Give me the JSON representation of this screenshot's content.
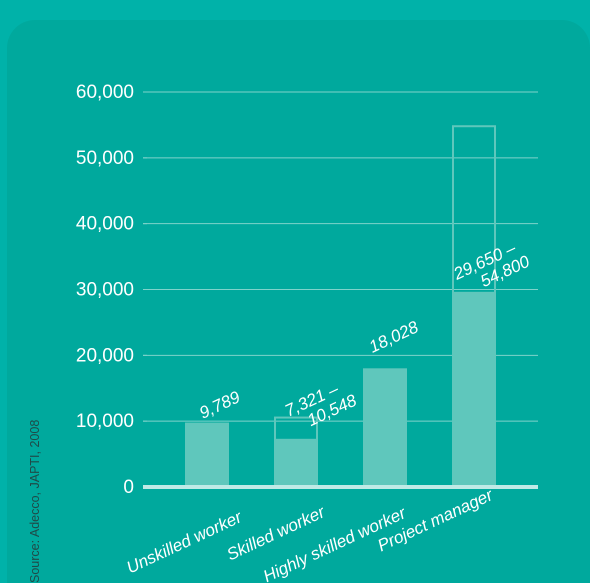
{
  "chart_data": {
    "type": "bar",
    "categories": [
      "Unskilled worker",
      "Skilled worker",
      "Highly skilled worker",
      "Project manager"
    ],
    "series": [
      {
        "values": [
          9789,
          7321,
          18028,
          29650
        ]
      },
      {
        "values": [
          null,
          10548,
          null,
          54800
        ]
      }
    ],
    "data_labels": [
      [
        "9,789"
      ],
      [
        "7,321 –",
        "10,548"
      ],
      [
        "18,028"
      ],
      [
        "29,650 –",
        "54,800"
      ]
    ],
    "yticks": [
      "0",
      "10,000",
      "20,000",
      "30,000",
      "40,000",
      "50,000",
      "60,000"
    ],
    "ylim": [
      0,
      60000
    ],
    "grid": true,
    "source": "Source: Adecco, JAPTI, 2008",
    "colors": {
      "background": "#00b2a9",
      "panel": "#00a99d",
      "bar": "#5fc7bc",
      "gridline": "#7fd3cb",
      "axis": "#bfeae6"
    }
  }
}
